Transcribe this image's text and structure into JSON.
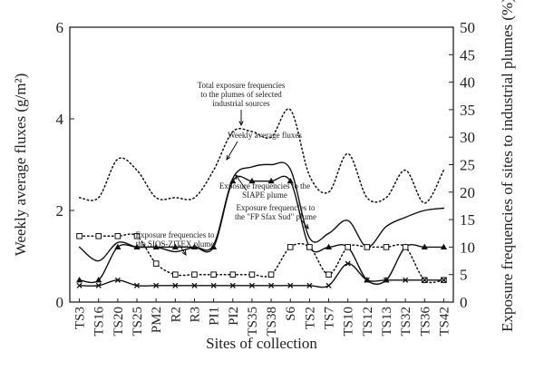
{
  "chart_data": {
    "type": "line",
    "xlabel": "Sites of collection",
    "ylabel_left": "Weekly average fluxes (g/m²)",
    "ylabel_right": "Exposure frequencies of sites to industrial plumes (%)",
    "ylim_left": [
      0,
      6
    ],
    "yticks_left": [
      "0",
      "2",
      "4",
      "6"
    ],
    "ylim_right": [
      0,
      50
    ],
    "yticks_right": [
      "0",
      "5",
      "10",
      "15",
      "20",
      "25",
      "30",
      "35",
      "40",
      "45",
      "50"
    ],
    "grid": false,
    "categories": [
      "TS3",
      "TS16",
      "TS20",
      "TS25",
      "PM2",
      "R2",
      "R3",
      "PI1",
      "PI2",
      "TS35",
      "TS38",
      "S6",
      "TS2",
      "TS7",
      "TS10",
      "TS12",
      "TS13",
      "TS32",
      "TS36",
      "TS42"
    ],
    "series": [
      {
        "axis": "left",
        "style": "solid",
        "values": [
          1.2,
          0.9,
          1.3,
          1.2,
          1.2,
          1.1,
          1.2,
          1.25,
          2.7,
          2.95,
          3.0,
          2.9,
          1.4,
          1.5,
          1.78,
          1.2,
          1.65,
          1.85,
          2.0,
          2.05
        ]
      },
      {
        "axis": "right",
        "style": "dotted",
        "values": [
          19,
          19,
          26,
          24,
          19,
          19,
          19,
          24,
          31,
          31,
          30,
          35,
          23,
          20,
          27,
          19,
          19,
          24,
          18,
          24
        ]
      },
      {
        "axis": "right",
        "style": "solid",
        "marker": "filled-triangle",
        "values": [
          4,
          4,
          10,
          10,
          10,
          10,
          10,
          10,
          22,
          22,
          22,
          22,
          10,
          10,
          10,
          4,
          4,
          10,
          10,
          10
        ]
      },
      {
        "axis": "right",
        "style": "dotted",
        "marker": "open-square",
        "values": [
          12,
          12,
          12,
          12,
          7,
          5,
          5,
          5,
          5,
          5,
          5,
          10,
          10,
          5,
          10,
          10,
          10,
          10,
          4,
          4
        ]
      },
      {
        "axis": "right",
        "style": "solid",
        "marker": "cross",
        "values": [
          3,
          3,
          4,
          3,
          3,
          3,
          3,
          3,
          3,
          3,
          3,
          3,
          3,
          3,
          7,
          4,
          4,
          4,
          4,
          4
        ]
      }
    ],
    "annotations": [
      {
        "lines": [
          "Total exposure frequencies",
          "to the plumes of selected",
          "industrial sources"
        ]
      },
      {
        "lines": [
          "Weekly average fluxes"
        ]
      },
      {
        "lines": [
          "Exposure frequencies to the",
          "SIAPE plume"
        ]
      },
      {
        "lines": [
          "Exposure frequencies to",
          "the \"FP Sfax Sud\" plume"
        ]
      },
      {
        "lines": [
          "Exposure frequencies to",
          "the SIOS-ZITEX plume"
        ]
      }
    ]
  }
}
